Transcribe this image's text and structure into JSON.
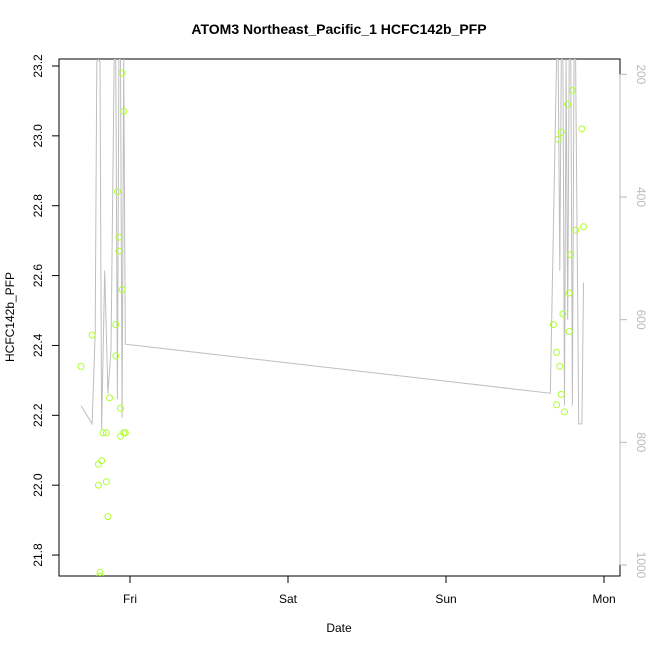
{
  "chart_data": {
    "type": "scatter",
    "title": "ATOM3 Northeast_Pacific_1 HCFC142b_PFP",
    "xlabel": "Date",
    "ylabel": "HCFC142b_PFP",
    "x_ticks": [
      "Fri",
      "Sat",
      "Sun",
      "Mon"
    ],
    "ylim": [
      21.74,
      23.22
    ],
    "y_ticks": [
      21.8,
      22.0,
      22.2,
      22.4,
      22.6,
      22.8,
      23.0,
      23.2
    ],
    "y2_ticks": [
      200,
      400,
      600,
      800,
      1000
    ],
    "y2lim": [
      1018,
      175
    ],
    "grid": false,
    "colors": {
      "points": "#adff2f",
      "line": "#bebebe",
      "secondary_axis": "#bbbbbb"
    },
    "series": [
      {
        "type": "points",
        "x": [
          -0.31,
          -0.24,
          -0.2,
          -0.2,
          -0.19,
          -0.19,
          -0.18,
          -0.17,
          -0.15,
          -0.15,
          -0.14,
          -0.13,
          -0.09,
          -0.09,
          -0.08,
          -0.07,
          -0.07,
          -0.06,
          -0.06,
          -0.05,
          -0.05,
          -0.04,
          -0.04,
          -0.03,
          2.68,
          2.7,
          2.7,
          2.71,
          2.72,
          2.73,
          2.73,
          2.74,
          2.75,
          2.77,
          2.78,
          2.78,
          2.79,
          2.8,
          2.82,
          2.86,
          2.87
        ],
        "y": [
          22.34,
          22.43,
          22.06,
          22.0,
          21.74,
          21.75,
          22.07,
          22.15,
          22.15,
          22.01,
          21.91,
          22.25,
          22.46,
          22.37,
          22.84,
          22.71,
          22.67,
          22.22,
          22.14,
          22.56,
          23.18,
          23.07,
          22.15,
          22.15,
          22.46,
          22.38,
          22.23,
          22.99,
          22.34,
          22.26,
          23.01,
          22.49,
          22.21,
          23.09,
          22.44,
          22.55,
          22.66,
          23.13,
          22.73,
          23.02,
          22.74
        ]
      },
      {
        "type": "line",
        "axis": "right",
        "x": [
          -0.31,
          -0.24,
          -0.22,
          -0.21,
          -0.2,
          -0.19,
          -0.18,
          -0.16,
          -0.14,
          -0.12,
          -0.1,
          -0.09,
          -0.08,
          -0.07,
          -0.06,
          -0.05,
          -0.04,
          -0.03,
          2.66,
          2.7,
          2.71,
          2.72,
          2.73,
          2.74,
          2.75,
          2.76,
          2.77,
          2.78,
          2.79,
          2.8,
          2.81,
          2.82,
          2.84,
          2.86,
          2.87
        ],
        "y": [
          740,
          770,
          620,
          180,
          175,
          180,
          780,
          520,
          720,
          650,
          175,
          175,
          730,
          175,
          175,
          760,
          175,
          640,
          720,
          175,
          175,
          520,
          175,
          175,
          740,
          175,
          600,
          175,
          175,
          740,
          175,
          175,
          770,
          770,
          540
        ]
      }
    ]
  }
}
